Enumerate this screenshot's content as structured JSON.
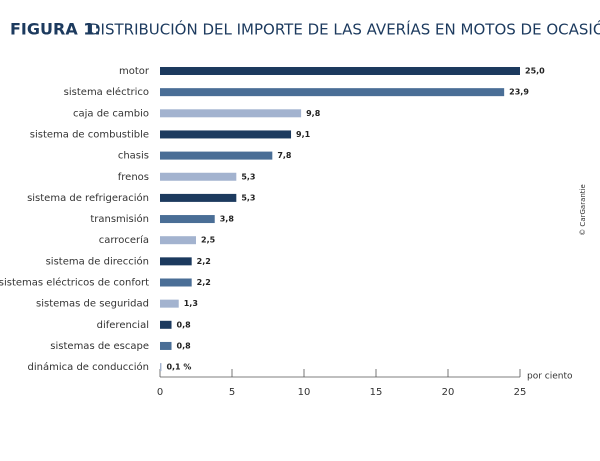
{
  "chart_data": {
    "type": "hbar",
    "figure_label": "FIGURA 1:",
    "title": "DISTRIBUCIÓN DEL IMPORTE DE LAS AVERÍAS EN MOTOS DE OCASIÓN",
    "x_label": "por ciento",
    "credit": "© CarGarantie",
    "categories": [
      "motor",
      "sistema eléctrico",
      "caja de cambio",
      "sistema de combustible",
      "chasis",
      "frenos",
      "sistema de refrigeración",
      "transmisión",
      "carrocería",
      "sistema de dirección",
      "sistemas eléctricos de confort",
      "sistemas de seguridad",
      "diferencial",
      "sistemas de escape",
      "dinámica de conducción"
    ],
    "values": [
      25.0,
      23.9,
      9.8,
      9.1,
      7.8,
      5.3,
      5.3,
      3.8,
      2.5,
      2.2,
      2.2,
      1.3,
      0.8,
      0.8,
      0.1
    ],
    "value_labels": [
      "25,0",
      "23,9",
      "9,8",
      "9,1",
      "7,8",
      "5,3",
      "5,3",
      "3,8",
      "2,5",
      "2,2",
      "2,2",
      "1,3",
      "0,8",
      "0,8",
      "0,1 %"
    ],
    "colors": [
      "#1c3a5e",
      "#4a6e96",
      "#a3b3cf",
      "#1c3a5e",
      "#4a6e96",
      "#a3b3cf",
      "#1c3a5e",
      "#4a6e96",
      "#a3b3cf",
      "#1c3a5e",
      "#4a6e96",
      "#a3b3cf",
      "#1c3a5e",
      "#4a6e96",
      "#a3b3cf"
    ],
    "xlim": [
      0,
      25
    ],
    "xticks": [
      0,
      5,
      10,
      15,
      20,
      25
    ]
  }
}
